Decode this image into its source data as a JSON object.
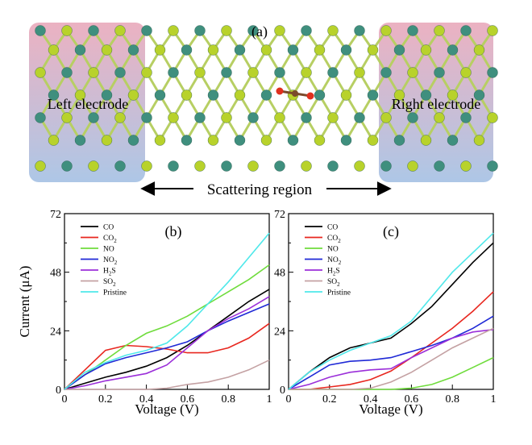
{
  "panel_a": {
    "label": "(a)",
    "left_electrode": "Left electrode",
    "right_electrode": "Right electrode",
    "scattering_region": "Scattering region",
    "colors": {
      "left_gradient_top": "#e8a4b7",
      "left_gradient_bottom": "#9fbde2",
      "right_gradient_top": "#e8a4b7",
      "right_gradient_bottom": "#9fbde2",
      "bond": "#b7cf63",
      "atom_teal": "#3f8f7e",
      "atom_green": "#b8d22b",
      "molecule_o": "#e0301e",
      "molecule_c": "#7b4a2c"
    }
  },
  "chart_data": [
    {
      "type": "line",
      "panel_label": "(b)",
      "xlabel": "Voltage (V)",
      "ylabel": "Current (μA)",
      "xlim": [
        0,
        1
      ],
      "ylim": [
        0,
        72
      ],
      "xticks": [
        "0",
        "0.2",
        "0.4",
        "0.6",
        "0.8",
        "1"
      ],
      "yticks": [
        "0",
        "24",
        "48",
        "72"
      ],
      "legend_position": "top-left",
      "series": [
        {
          "name": "CO",
          "color": "#000000",
          "x": [
            0,
            0.1,
            0.2,
            0.3,
            0.4,
            0.5,
            0.6,
            0.7,
            0.8,
            0.9,
            1.0
          ],
          "y": [
            0,
            2.5,
            5,
            7,
            9.5,
            13,
            18,
            24,
            30,
            36,
            41
          ]
        },
        {
          "name": "CO2",
          "color": "#e8271f",
          "x": [
            0,
            0.1,
            0.2,
            0.3,
            0.4,
            0.5,
            0.6,
            0.7,
            0.8,
            0.9,
            1.0
          ],
          "y": [
            0,
            8,
            16,
            18,
            17.5,
            16.5,
            15,
            15,
            17,
            21,
            27
          ]
        },
        {
          "name": "NO",
          "color": "#6fdc3c",
          "x": [
            0,
            0.1,
            0.2,
            0.3,
            0.4,
            0.5,
            0.6,
            0.7,
            0.8,
            0.9,
            1.0
          ],
          "y": [
            0,
            6,
            12,
            18,
            23,
            26,
            30,
            35,
            40,
            45,
            51
          ]
        },
        {
          "name": "NO2",
          "color": "#1f29d6",
          "x": [
            0,
            0.1,
            0.2,
            0.3,
            0.4,
            0.5,
            0.6,
            0.7,
            0.8,
            0.9,
            1.0
          ],
          "y": [
            0,
            6,
            10.5,
            13,
            15,
            17,
            19.5,
            24,
            28,
            31.5,
            35
          ]
        },
        {
          "name": "H2S",
          "color": "#9b2fd9",
          "x": [
            0,
            0.1,
            0.2,
            0.3,
            0.4,
            0.5,
            0.6,
            0.7,
            0.8,
            0.9,
            1.0
          ],
          "y": [
            0,
            1.5,
            3.5,
            5,
            6.5,
            10,
            17,
            24,
            29,
            33,
            38
          ]
        },
        {
          "name": "SO2",
          "color": "#c4a1a3",
          "x": [
            0,
            0.1,
            0.2,
            0.3,
            0.4,
            0.5,
            0.6,
            0.7,
            0.8,
            0.9,
            1.0
          ],
          "y": [
            0,
            0,
            0,
            0,
            0,
            0.5,
            2,
            3,
            5,
            8,
            12
          ]
        },
        {
          "name": "Pristine",
          "color": "#4fe8ea",
          "x": [
            0,
            0.1,
            0.2,
            0.3,
            0.4,
            0.5,
            0.6,
            0.7,
            0.8,
            0.9,
            1.0
          ],
          "y": [
            0,
            7,
            11,
            14,
            16,
            19,
            26,
            35,
            44,
            54,
            64
          ]
        }
      ]
    },
    {
      "type": "line",
      "panel_label": "(c)",
      "xlabel": "Voltage (V)",
      "ylabel": "",
      "xlim": [
        0,
        1
      ],
      "ylim": [
        0,
        72
      ],
      "xticks": [
        "0",
        "0.2",
        "0.4",
        "0.6",
        "0.8",
        "1"
      ],
      "yticks": [
        "0",
        "24",
        "48",
        "72"
      ],
      "legend_position": "top-left",
      "series": [
        {
          "name": "CO",
          "color": "#000000",
          "x": [
            0,
            0.1,
            0.2,
            0.3,
            0.4,
            0.5,
            0.6,
            0.7,
            0.8,
            0.9,
            1.0
          ],
          "y": [
            0,
            7,
            13,
            17,
            19,
            21,
            27,
            34,
            43,
            52,
            60
          ]
        },
        {
          "name": "CO2",
          "color": "#e8271f",
          "x": [
            0,
            0.1,
            0.2,
            0.3,
            0.4,
            0.5,
            0.6,
            0.7,
            0.8,
            0.9,
            1.0
          ],
          "y": [
            0,
            0,
            1,
            2,
            4,
            7.5,
            13,
            19,
            25,
            32,
            40
          ]
        },
        {
          "name": "NO",
          "color": "#6fdc3c",
          "x": [
            0,
            0.1,
            0.2,
            0.3,
            0.4,
            0.5,
            0.6,
            0.7,
            0.8,
            0.9,
            1.0
          ],
          "y": [
            0,
            0,
            0,
            0,
            0,
            0,
            0.5,
            2,
            5,
            9,
            13
          ]
        },
        {
          "name": "NO2",
          "color": "#1f29d6",
          "x": [
            0,
            0.1,
            0.2,
            0.3,
            0.4,
            0.5,
            0.6,
            0.7,
            0.8,
            0.9,
            1.0
          ],
          "y": [
            0,
            5,
            10,
            11.5,
            12,
            13,
            15.5,
            18,
            21,
            25,
            30
          ]
        },
        {
          "name": "H2S",
          "color": "#9b2fd9",
          "x": [
            0,
            0.1,
            0.2,
            0.3,
            0.4,
            0.5,
            0.6,
            0.7,
            0.8,
            0.9,
            1.0
          ],
          "y": [
            0,
            2,
            5,
            7,
            8,
            8.5,
            13,
            17,
            21,
            23.5,
            24.5
          ]
        },
        {
          "name": "SO2",
          "color": "#c4a1a3",
          "x": [
            0,
            0.1,
            0.2,
            0.3,
            0.4,
            0.5,
            0.6,
            0.7,
            0.8,
            0.9,
            1.0
          ],
          "y": [
            0,
            0,
            0,
            0,
            0.5,
            3,
            7,
            12,
            17,
            21,
            25
          ]
        },
        {
          "name": "Pristine",
          "color": "#4fe8ea",
          "x": [
            0,
            0.1,
            0.2,
            0.3,
            0.4,
            0.5,
            0.6,
            0.7,
            0.8,
            0.9,
            1.0
          ],
          "y": [
            0,
            7,
            12,
            16,
            19,
            22,
            28,
            38,
            48,
            56,
            64
          ]
        }
      ]
    }
  ]
}
